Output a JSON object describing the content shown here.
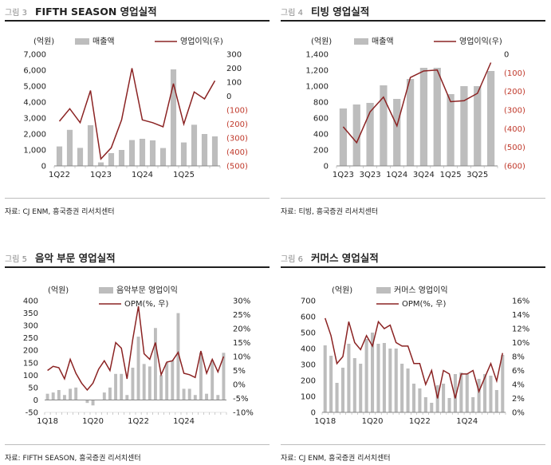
{
  "charts": [
    {
      "fig_num": "그림 3",
      "title": "FIFTH SEASON 영업실적",
      "source": "자료: CJ ENM, 흥국증권 리서치센터",
      "chart_data": {
        "type": "bar+line",
        "unit_label": "(억원)",
        "legend": [
          "매출액",
          "영업이익(우)"
        ],
        "left_ticks": [
          "0",
          "1,000",
          "2,000",
          "3,000",
          "4,000",
          "5,000",
          "6,000",
          "7,000"
        ],
        "right_ticks": [
          "(500)",
          "(400)",
          "(300)",
          "(200)",
          "(100)",
          "0",
          "100",
          "200",
          "300"
        ],
        "right_neg_color": "#c0392b",
        "x_labels": [
          "1Q22",
          "1Q23",
          "1Q24",
          "1Q25"
        ],
        "left_range": [
          0,
          7000
        ],
        "right_range": [
          -500,
          300
        ],
        "bars": [
          1220,
          2260,
          1130,
          2550,
          220,
          800,
          1000,
          1620,
          1700,
          1600,
          1120,
          6050,
          1470,
          2580,
          2000,
          1850
        ],
        "line": [
          -180,
          -90,
          -190,
          40,
          -450,
          -370,
          -170,
          200,
          -170,
          -190,
          -220,
          90,
          -200,
          30,
          -20,
          110
        ]
      }
    },
    {
      "fig_num": "그림 4",
      "title": "티빙 영업실적",
      "source": "자료: 티빙, 흥국증권 리서치센터",
      "chart_data": {
        "type": "bar+line",
        "unit_label": "(억원)",
        "legend": [
          "매출액",
          "영업이익(우)"
        ],
        "left_ticks": [
          "0",
          "200",
          "400",
          "600",
          "800",
          "1,000",
          "1,200",
          "1,400"
        ],
        "right_ticks": [
          "(600)",
          "(500)",
          "(400)",
          "(300)",
          "(200)",
          "(100)",
          "0"
        ],
        "right_neg_color": "#c0392b",
        "x_labels": [
          "1Q23",
          "3Q23",
          "1Q24",
          "3Q24",
          "1Q25",
          "3Q25"
        ],
        "left_range": [
          0,
          1400
        ],
        "right_range": [
          -600,
          0
        ],
        "bars": [
          720,
          770,
          790,
          1010,
          840,
          1090,
          1230,
          1230,
          900,
          1000,
          1000,
          1190
        ],
        "line": [
          -390,
          -475,
          -310,
          -230,
          -385,
          -125,
          -90,
          -85,
          -255,
          -250,
          -210,
          -45
        ]
      }
    },
    {
      "fig_num": "그림 5",
      "title": "음악 부문 영업실적",
      "source": "자료: FIFTH SEASON, 흥국증권 리서치센터",
      "chart_data": {
        "type": "bar+line",
        "unit_label": "(억원)",
        "legend": [
          "음악부문 영업이익",
          "OPM(%, 우)"
        ],
        "left_ticks": [
          "-50",
          "0",
          "50",
          "100",
          "150",
          "200",
          "250",
          "300",
          "350",
          "400"
        ],
        "right_ticks": [
          "-10%",
          "-5%",
          "0%",
          "5%",
          "10%",
          "15%",
          "20%",
          "25%",
          "30%"
        ],
        "right_neg_color": "#222222",
        "x_labels": [
          "1Q18",
          "1Q20",
          "1Q22",
          "1Q24"
        ],
        "left_range": [
          -50,
          400
        ],
        "right_range": [
          -10,
          30
        ],
        "bars": [
          25,
          30,
          40,
          20,
          45,
          50,
          0,
          -12,
          -22,
          0,
          30,
          50,
          105,
          105,
          20,
          130,
          255,
          145,
          135,
          290,
          100,
          150,
          160,
          350,
          45,
          45,
          20,
          190,
          25,
          160,
          20,
          190
        ],
        "line": [
          5,
          6.5,
          6,
          2,
          9,
          4,
          0.5,
          -2,
          0.5,
          5.5,
          8.5,
          5,
          15,
          13,
          2,
          16,
          28,
          11,
          9,
          15,
          3.5,
          8,
          8.5,
          11.5,
          4,
          3.5,
          2.5,
          12,
          4,
          9,
          4.5,
          10
        ]
      }
    },
    {
      "fig_num": "그림 6",
      "title": "커머스 영업실적",
      "source": "자료: CJ ENM, 흥국증권 리서치센터",
      "chart_data": {
        "type": "bar+line",
        "unit_label": "(억원)",
        "legend": [
          "커머스 영업이익",
          "OPM(%, 우)"
        ],
        "left_ticks": [
          "0",
          "100",
          "200",
          "300",
          "400",
          "500",
          "600",
          "700"
        ],
        "right_ticks": [
          "0%",
          "2%",
          "4%",
          "6%",
          "8%",
          "10%",
          "12%",
          "14%",
          "16%"
        ],
        "right_neg_color": "#222222",
        "x_labels": [
          "1Q18",
          "1Q20",
          "1Q22",
          "1Q24"
        ],
        "left_range": [
          0,
          700
        ],
        "right_range": [
          0,
          16
        ],
        "bars": [
          420,
          355,
          185,
          280,
          430,
          340,
          305,
          460,
          500,
          430,
          435,
          400,
          400,
          305,
          275,
          180,
          150,
          95,
          60,
          170,
          180,
          90,
          240,
          250,
          240,
          95,
          210,
          240,
          230,
          140,
          360
        ],
        "line": [
          13.5,
          11,
          7,
          8,
          13,
          10,
          9,
          11,
          9.5,
          13,
          12,
          12.5,
          10,
          9.5,
          9.5,
          7,
          7,
          4,
          6,
          2,
          6,
          5.5,
          2,
          5.5,
          5.5,
          6,
          3,
          5,
          7,
          4.5,
          8.5
        ]
      }
    }
  ]
}
